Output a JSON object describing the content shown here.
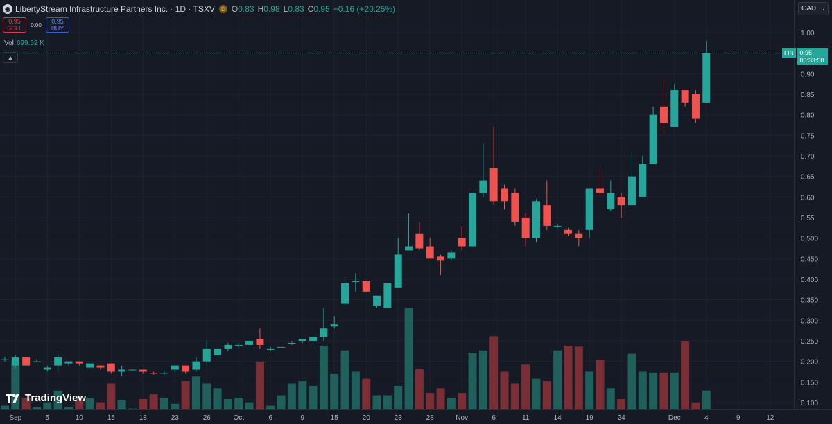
{
  "header": {
    "icon": "liberty-logo-icon",
    "title": "LibertyStream Infrastructure Partners Inc. · 1D · TSXV",
    "badge": "D",
    "o_label": "O",
    "o_value": "0.83",
    "h_label": "H",
    "h_value": "0.98",
    "l_label": "L",
    "l_value": "0.83",
    "c_label": "C",
    "c_value": "0.95",
    "change": "+0.16 (+20.25%)"
  },
  "trade": {
    "sell_price": "0.95",
    "sell_label": "SELL",
    "spread": "0.00",
    "buy_price": "0.95",
    "buy_label": "BUY"
  },
  "volume": {
    "label": "Vol",
    "value": "699.52 K"
  },
  "currency": "CAD",
  "price_label": {
    "symbol": "LIB",
    "price": "0.95",
    "countdown": "05:33:50"
  },
  "brand": "TradingView",
  "colors": {
    "up": "#26a69a",
    "down": "#ef5350",
    "vol_up": "#1f5f5c",
    "vol_down": "#7a2f37",
    "background": "#161a25"
  },
  "chart_data": {
    "type": "candlestick",
    "y_ticks": [
      "1.00",
      "0.95",
      "0.90",
      "0.85",
      "0.80",
      "0.75",
      "0.70",
      "0.65",
      "0.60",
      "0.55",
      "0.500",
      "0.450",
      "0.400",
      "0.350",
      "0.300",
      "0.250",
      "0.200",
      "0.150",
      "0.100"
    ],
    "ylim": [
      0.085,
      1.02
    ],
    "x_ticks": [
      {
        "label": "Sep",
        "i": 1
      },
      {
        "label": "5",
        "i": 4
      },
      {
        "label": "10",
        "i": 7
      },
      {
        "label": "15",
        "i": 10
      },
      {
        "label": "18",
        "i": 13
      },
      {
        "label": "23",
        "i": 16
      },
      {
        "label": "26",
        "i": 19
      },
      {
        "label": "Oct",
        "i": 22
      },
      {
        "label": "6",
        "i": 25
      },
      {
        "label": "9",
        "i": 28
      },
      {
        "label": "15",
        "i": 31
      },
      {
        "label": "20",
        "i": 34
      },
      {
        "label": "23",
        "i": 37
      },
      {
        "label": "28",
        "i": 40
      },
      {
        "label": "Nov",
        "i": 43
      },
      {
        "label": "6",
        "i": 46
      },
      {
        "label": "11",
        "i": 49
      },
      {
        "label": "14",
        "i": 52
      },
      {
        "label": "19",
        "i": 55
      },
      {
        "label": "24",
        "i": 58
      },
      {
        "label": "Dec",
        "i": 63
      },
      {
        "label": "4",
        "i": 66
      },
      {
        "label": "9",
        "i": 69
      },
      {
        "label": "12",
        "i": 72
      }
    ],
    "candles": [
      {
        "o": 0.205,
        "h": 0.21,
        "l": 0.2,
        "c": 0.205,
        "v": 8
      },
      {
        "o": 0.19,
        "h": 0.215,
        "l": 0.185,
        "c": 0.21,
        "v": 100
      },
      {
        "o": 0.21,
        "h": 0.21,
        "l": 0.19,
        "c": 0.19,
        "v": 25
      },
      {
        "o": 0.2,
        "h": 0.205,
        "l": 0.2,
        "c": 0.2,
        "v": 5
      },
      {
        "o": 0.18,
        "h": 0.19,
        "l": 0.175,
        "c": 0.185,
        "v": 15
      },
      {
        "o": 0.19,
        "h": 0.22,
        "l": 0.175,
        "c": 0.21,
        "v": 40
      },
      {
        "o": 0.195,
        "h": 0.2,
        "l": 0.19,
        "c": 0.2,
        "v": 5
      },
      {
        "o": 0.2,
        "h": 0.2,
        "l": 0.19,
        "c": 0.195,
        "v": 20
      },
      {
        "o": 0.185,
        "h": 0.195,
        "l": 0.185,
        "c": 0.195,
        "v": 25
      },
      {
        "o": 0.19,
        "h": 0.19,
        "l": 0.18,
        "c": 0.185,
        "v": 15
      },
      {
        "o": 0.195,
        "h": 0.195,
        "l": 0.17,
        "c": 0.175,
        "v": 55
      },
      {
        "o": 0.175,
        "h": 0.19,
        "l": 0.165,
        "c": 0.18,
        "v": 20
      },
      {
        "o": 0.18,
        "h": 0.18,
        "l": 0.178,
        "c": 0.18,
        "v": 2
      },
      {
        "o": 0.18,
        "h": 0.18,
        "l": 0.17,
        "c": 0.175,
        "v": 22
      },
      {
        "o": 0.172,
        "h": 0.175,
        "l": 0.168,
        "c": 0.17,
        "v": 32
      },
      {
        "o": 0.172,
        "h": 0.175,
        "l": 0.168,
        "c": 0.172,
        "v": 25
      },
      {
        "o": 0.18,
        "h": 0.19,
        "l": 0.175,
        "c": 0.19,
        "v": 12
      },
      {
        "o": 0.19,
        "h": 0.19,
        "l": 0.17,
        "c": 0.175,
        "v": 60
      },
      {
        "o": 0.18,
        "h": 0.21,
        "l": 0.175,
        "c": 0.2,
        "v": 70
      },
      {
        "o": 0.2,
        "h": 0.25,
        "l": 0.19,
        "c": 0.23,
        "v": 55
      },
      {
        "o": 0.215,
        "h": 0.23,
        "l": 0.215,
        "c": 0.23,
        "v": 45
      },
      {
        "o": 0.23,
        "h": 0.245,
        "l": 0.225,
        "c": 0.24,
        "v": 22
      },
      {
        "o": 0.24,
        "h": 0.245,
        "l": 0.23,
        "c": 0.24,
        "v": 25
      },
      {
        "o": 0.24,
        "h": 0.25,
        "l": 0.24,
        "c": 0.25,
        "v": 15
      },
      {
        "o": 0.255,
        "h": 0.28,
        "l": 0.23,
        "c": 0.24,
        "v": 100
      },
      {
        "o": 0.23,
        "h": 0.235,
        "l": 0.225,
        "c": 0.23,
        "v": 8
      },
      {
        "o": 0.235,
        "h": 0.24,
        "l": 0.23,
        "c": 0.235,
        "v": 30
      },
      {
        "o": 0.245,
        "h": 0.25,
        "l": 0.24,
        "c": 0.245,
        "v": 55
      },
      {
        "o": 0.25,
        "h": 0.255,
        "l": 0.245,
        "c": 0.255,
        "v": 60
      },
      {
        "o": 0.25,
        "h": 0.26,
        "l": 0.24,
        "c": 0.26,
        "v": 50
      },
      {
        "o": 0.26,
        "h": 0.33,
        "l": 0.25,
        "c": 0.28,
        "v": 135
      },
      {
        "o": 0.285,
        "h": 0.31,
        "l": 0.28,
        "c": 0.29,
        "v": 75
      },
      {
        "o": 0.34,
        "h": 0.4,
        "l": 0.335,
        "c": 0.39,
        "v": 125
      },
      {
        "o": 0.395,
        "h": 0.415,
        "l": 0.37,
        "c": 0.395,
        "v": 80
      },
      {
        "o": 0.395,
        "h": 0.395,
        "l": 0.37,
        "c": 0.37,
        "v": 65
      },
      {
        "o": 0.335,
        "h": 0.36,
        "l": 0.33,
        "c": 0.36,
        "v": 30
      },
      {
        "o": 0.33,
        "h": 0.39,
        "l": 0.33,
        "c": 0.39,
        "v": 30
      },
      {
        "o": 0.38,
        "h": 0.5,
        "l": 0.38,
        "c": 0.46,
        "v": 50
      },
      {
        "o": 0.47,
        "h": 0.56,
        "l": 0.47,
        "c": 0.48,
        "v": 215
      },
      {
        "o": 0.51,
        "h": 0.54,
        "l": 0.47,
        "c": 0.475,
        "v": 85
      },
      {
        "o": 0.48,
        "h": 0.5,
        "l": 0.45,
        "c": 0.45,
        "v": 35
      },
      {
        "o": 0.455,
        "h": 0.46,
        "l": 0.41,
        "c": 0.445,
        "v": 45
      },
      {
        "o": 0.45,
        "h": 0.47,
        "l": 0.445,
        "c": 0.465,
        "v": 25
      },
      {
        "o": 0.5,
        "h": 0.53,
        "l": 0.47,
        "c": 0.48,
        "v": 35
      },
      {
        "o": 0.48,
        "h": 0.61,
        "l": 0.48,
        "c": 0.61,
        "v": 120
      },
      {
        "o": 0.61,
        "h": 0.73,
        "l": 0.6,
        "c": 0.64,
        "v": 125
      },
      {
        "o": 0.67,
        "h": 0.77,
        "l": 0.58,
        "c": 0.59,
        "v": 155
      },
      {
        "o": 0.62,
        "h": 0.63,
        "l": 0.57,
        "c": 0.59,
        "v": 80
      },
      {
        "o": 0.61,
        "h": 0.62,
        "l": 0.53,
        "c": 0.54,
        "v": 55
      },
      {
        "o": 0.55,
        "h": 0.56,
        "l": 0.48,
        "c": 0.5,
        "v": 95
      },
      {
        "o": 0.5,
        "h": 0.595,
        "l": 0.49,
        "c": 0.59,
        "v": 65
      },
      {
        "o": 0.58,
        "h": 0.64,
        "l": 0.52,
        "c": 0.53,
        "v": 60
      },
      {
        "o": 0.53,
        "h": 0.535,
        "l": 0.525,
        "c": 0.53,
        "v": 125
      },
      {
        "o": 0.52,
        "h": 0.525,
        "l": 0.505,
        "c": 0.51,
        "v": 135
      },
      {
        "o": 0.51,
        "h": 0.52,
        "l": 0.48,
        "c": 0.5,
        "v": 133
      },
      {
        "o": 0.52,
        "h": 0.62,
        "l": 0.5,
        "c": 0.62,
        "v": 80
      },
      {
        "o": 0.62,
        "h": 0.67,
        "l": 0.6,
        "c": 0.61,
        "v": 105
      },
      {
        "o": 0.57,
        "h": 0.64,
        "l": 0.565,
        "c": 0.61,
        "v": 45
      },
      {
        "o": 0.6,
        "h": 0.61,
        "l": 0.55,
        "c": 0.58,
        "v": 22
      },
      {
        "o": 0.58,
        "h": 0.71,
        "l": 0.575,
        "c": 0.65,
        "v": 118
      },
      {
        "o": 0.6,
        "h": 0.7,
        "l": 0.6,
        "c": 0.68,
        "v": 80
      },
      {
        "o": 0.68,
        "h": 0.82,
        "l": 0.68,
        "c": 0.8,
        "v": 78
      },
      {
        "o": 0.82,
        "h": 0.89,
        "l": 0.76,
        "c": 0.78,
        "v": 78
      },
      {
        "o": 0.77,
        "h": 0.875,
        "l": 0.77,
        "c": 0.86,
        "v": 78
      },
      {
        "o": 0.86,
        "h": 0.86,
        "l": 0.82,
        "c": 0.83,
        "v": 145
      },
      {
        "o": 0.85,
        "h": 0.86,
        "l": 0.78,
        "c": 0.79,
        "v": 15
      },
      {
        "o": 0.83,
        "h": 0.98,
        "l": 0.83,
        "c": 0.95,
        "v": 40
      }
    ]
  }
}
